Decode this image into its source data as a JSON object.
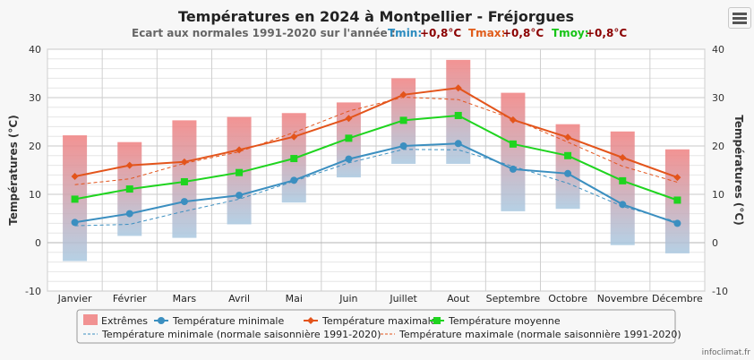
{
  "header": {
    "title": "Températures en 2024 à Montpellier - Fréjorgues",
    "subtitle": "Ecart aux normales 1991-2020 sur l'année :",
    "tmin_label": "Tmin:",
    "tmin_value": "+0,8°C",
    "tmax_label": "Tmax:",
    "tmax_value": "+0,8°C",
    "tmoy_label": "Tmoy:",
    "tmoy_value": "+0,8°C"
  },
  "credit": "infoclimat.fr",
  "menu_icon": "hamburger-menu-icon",
  "colors": {
    "tmin": "#3b8fc0",
    "tmax": "#e3541b",
    "tmoy": "#1fd41f",
    "tmin_label": "#2a8bbf",
    "tmax_label": "#e05c1a",
    "tmoy_label": "#16c416",
    "dark_red": "#8b0000",
    "extremes_top": "#f08080",
    "extremes_bottom": "#a9c8e0"
  },
  "chart_data": {
    "type": "line",
    "categories": [
      "Janvier",
      "Février",
      "Mars",
      "Avril",
      "Mai",
      "Juin",
      "Juillet",
      "Aout",
      "Septembre",
      "Octobre",
      "Novembre",
      "Décembre"
    ],
    "ylim": [
      -10,
      40
    ],
    "yticks": [
      -10,
      0,
      10,
      20,
      30,
      40
    ],
    "ylabel": "Températures (°C)",
    "ylabel_right": "Températures (°C)",
    "grid": true,
    "extremes": {
      "name": "Extrêmes",
      "low": [
        -3.8,
        1.4,
        1.0,
        3.8,
        8.3,
        13.5,
        16.3,
        16.3,
        6.5,
        7.0,
        -0.5,
        -2.2
      ],
      "high": [
        22.2,
        20.8,
        25.3,
        26.0,
        26.8,
        29.0,
        34.0,
        37.8,
        31.0,
        24.5,
        23.0,
        19.3
      ]
    },
    "series": [
      {
        "name": "Température minimale",
        "values": [
          4.2,
          6.0,
          8.5,
          9.8,
          12.9,
          17.3,
          20.0,
          20.5,
          15.2,
          14.3,
          7.9,
          4.0
        ]
      },
      {
        "name": "Température maximale",
        "values": [
          13.7,
          16.0,
          16.7,
          19.2,
          21.9,
          25.7,
          30.6,
          32.0,
          25.4,
          21.8,
          17.6,
          13.5
        ]
      },
      {
        "name": "Température moyenne",
        "values": [
          9.0,
          11.1,
          12.6,
          14.5,
          17.4,
          21.6,
          25.3,
          26.3,
          20.4,
          18.0,
          12.8,
          8.8
        ]
      },
      {
        "name": "Température minimale (normale saisonnière 1991-2020)",
        "values": [
          3.5,
          3.8,
          6.5,
          9.0,
          12.7,
          16.5,
          19.3,
          19.2,
          15.8,
          12.3,
          7.5,
          4.3
        ]
      },
      {
        "name": "Température maximale (normale saisonnière 1991-2020)",
        "values": [
          12.0,
          13.2,
          16.4,
          18.8,
          22.8,
          27.2,
          30.1,
          29.6,
          25.6,
          20.8,
          15.8,
          12.5
        ]
      }
    ],
    "legend_position": "bottom"
  }
}
